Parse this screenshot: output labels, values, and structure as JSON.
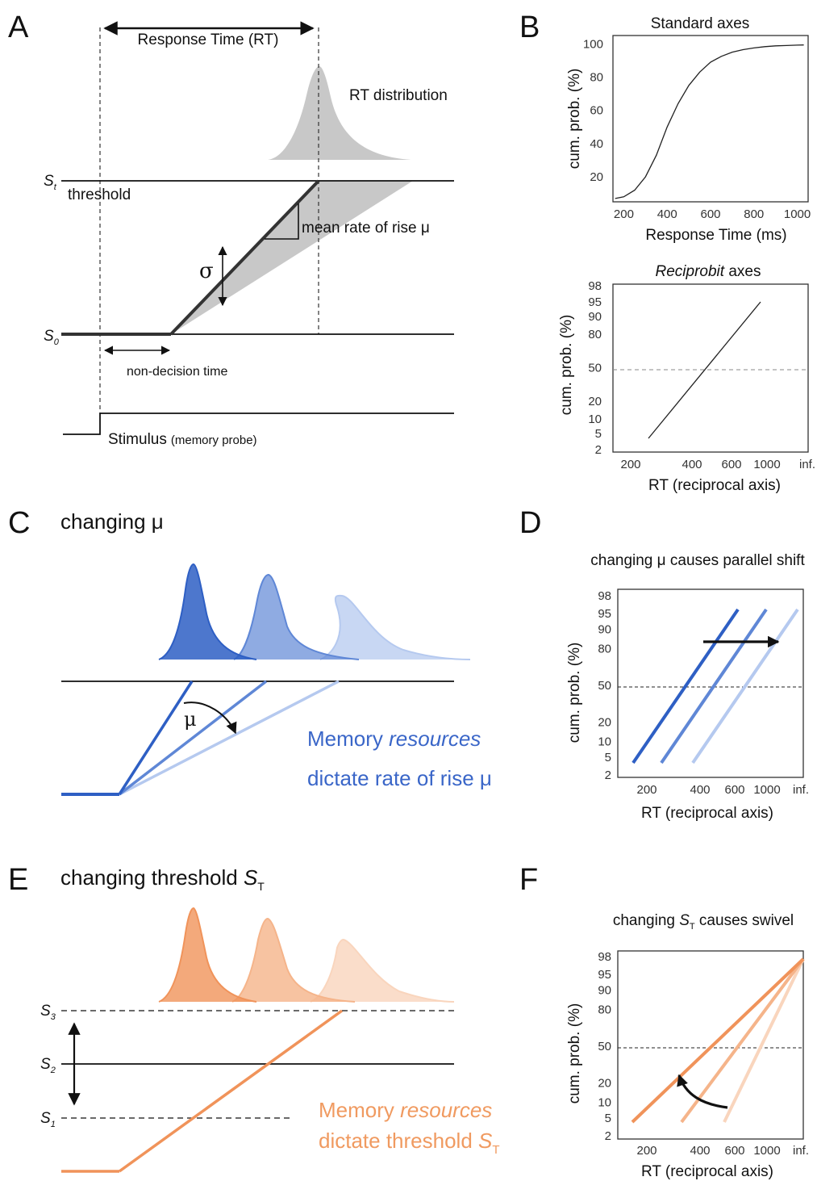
{
  "panels": {
    "A": {
      "letter": "A",
      "rt_label": "Response Time (RT)",
      "rt_dist_label": "RT distribution",
      "st_main": "S",
      "st_sub": "t",
      "threshold_label": "threshold",
      "rate_label": "mean rate of rise μ",
      "sigma": "σ",
      "s0_main": "S",
      "s0_sub": "0",
      "nondecision_label": "non-decision time",
      "stimulus_label": "Stimulus",
      "stimulus_sub": "(memory probe)"
    },
    "B": {
      "letter": "B",
      "top_title": "Standard axes",
      "top_ylabel": "cum. prob. (%)",
      "top_xlabel": "Response Time (ms)",
      "bottom_title_italic": "Reciprobit",
      "bottom_title_rest": " axes",
      "bottom_ylabel": "cum. prob. (%)",
      "bottom_xlabel": "RT (reciprocal axis)"
    },
    "C": {
      "letter": "C",
      "title": "changing μ",
      "mu": "μ",
      "line1_a": "Memory ",
      "line1_b": "resources",
      "line2": "dictate rate of rise μ"
    },
    "D": {
      "letter": "D",
      "title": "changing μ causes parallel shift",
      "ylabel": "cum. prob. (%)",
      "xlabel": "RT (reciprocal axis)"
    },
    "E": {
      "letter": "E",
      "title": "changing threshold ",
      "title_s": "S",
      "title_sub": "T",
      "s3_main": "S",
      "s3_sub": "3",
      "s2_main": "S",
      "s2_sub": "2",
      "s1_main": "S",
      "s1_sub": "1",
      "line1_a": "Memory ",
      "line1_b": "resources",
      "line2": "dictate threshold ",
      "line2_s": "S",
      "line2_sub": "T"
    },
    "F": {
      "letter": "F",
      "title_pre": "changing ",
      "title_s": "S",
      "title_sub": "T",
      "title_post": " causes swivel",
      "ylabel": "cum. prob. (%)",
      "xlabel": "RT (reciprocal axis)"
    }
  },
  "colors": {
    "blue": [
      "#2e5fc4",
      "#5f87d6",
      "#b5c9ef"
    ],
    "orange": [
      "#f0935a",
      "#f5b48a",
      "#f9d5bd"
    ],
    "gray_fill": "#c8c8c8",
    "text_blue": "#3a66c8",
    "text_orange": "#f09a60"
  },
  "chart_data": [
    {
      "panel": "B-top",
      "type": "line",
      "title": "Standard axes",
      "xlabel": "Response Time (ms)",
      "ylabel": "cum. prob. (%)",
      "xticks": [
        200,
        400,
        600,
        800,
        1000
      ],
      "yticks": [
        20,
        40,
        60,
        80,
        100
      ],
      "xlim": [
        150,
        1050
      ],
      "ylim": [
        5,
        105
      ],
      "x": [
        160,
        200,
        250,
        300,
        350,
        400,
        450,
        500,
        550,
        600,
        650,
        700,
        750,
        800,
        850,
        900,
        950,
        1000,
        1030
      ],
      "y": [
        7,
        8,
        12,
        20,
        33,
        50,
        64,
        75,
        83,
        89,
        92.5,
        95,
        96.5,
        97.5,
        98.3,
        98.8,
        99,
        99.2,
        99.3
      ]
    },
    {
      "panel": "B-bottom",
      "type": "line",
      "title": "Reciprobit axes",
      "xlabel": "RT (reciprocal axis)",
      "ylabel": "cum. prob. (%)",
      "xticks": [
        "200",
        "400",
        "600",
        "1000",
        "inf."
      ],
      "yticks": [
        2,
        5,
        10,
        20,
        50,
        80,
        90,
        95,
        98
      ],
      "ylim": [
        2,
        98
      ],
      "x": [
        300,
        850
      ],
      "y": [
        4,
        96
      ],
      "reference_line": 50
    },
    {
      "panel": "D",
      "type": "line",
      "title": "changing μ causes parallel shift",
      "xlabel": "RT (reciprocal axis)",
      "ylabel": "cum. prob. (%)",
      "xticks": [
        "200",
        "400",
        "600",
        "1000",
        "inf."
      ],
      "yticks": [
        2,
        5,
        10,
        20,
        50,
        80,
        90,
        95,
        98
      ],
      "ylim": [
        2,
        98
      ],
      "reference_line": 50,
      "series": [
        {
          "x": [
            155,
            560
          ],
          "y": [
            3.5,
            97
          ]
        },
        {
          "x": [
            250,
            1100
          ],
          "y": [
            3.5,
            97
          ]
        },
        {
          "x": [
            360,
            5000
          ],
          "y": [
            3.5,
            97
          ]
        }
      ]
    },
    {
      "panel": "F",
      "type": "line",
      "title": "changing ST causes swivel",
      "xlabel": "RT (reciprocal axis)",
      "ylabel": "cum. prob. (%)",
      "xticks": [
        "200",
        "400",
        "600",
        "1000",
        "inf."
      ],
      "yticks": [
        2,
        5,
        10,
        20,
        50,
        80,
        90,
        95,
        98
      ],
      "ylim": [
        2,
        98
      ],
      "reference_line": 50,
      "series": [
        {
          "x": [
            160,
            "inf"
          ],
          "y": [
            3.5,
            98
          ]
        },
        {
          "x": [
            300,
            "inf"
          ],
          "y": [
            3.5,
            98
          ]
        },
        {
          "x": [
            520,
            "inf"
          ],
          "y": [
            3.5,
            98
          ]
        }
      ]
    }
  ]
}
